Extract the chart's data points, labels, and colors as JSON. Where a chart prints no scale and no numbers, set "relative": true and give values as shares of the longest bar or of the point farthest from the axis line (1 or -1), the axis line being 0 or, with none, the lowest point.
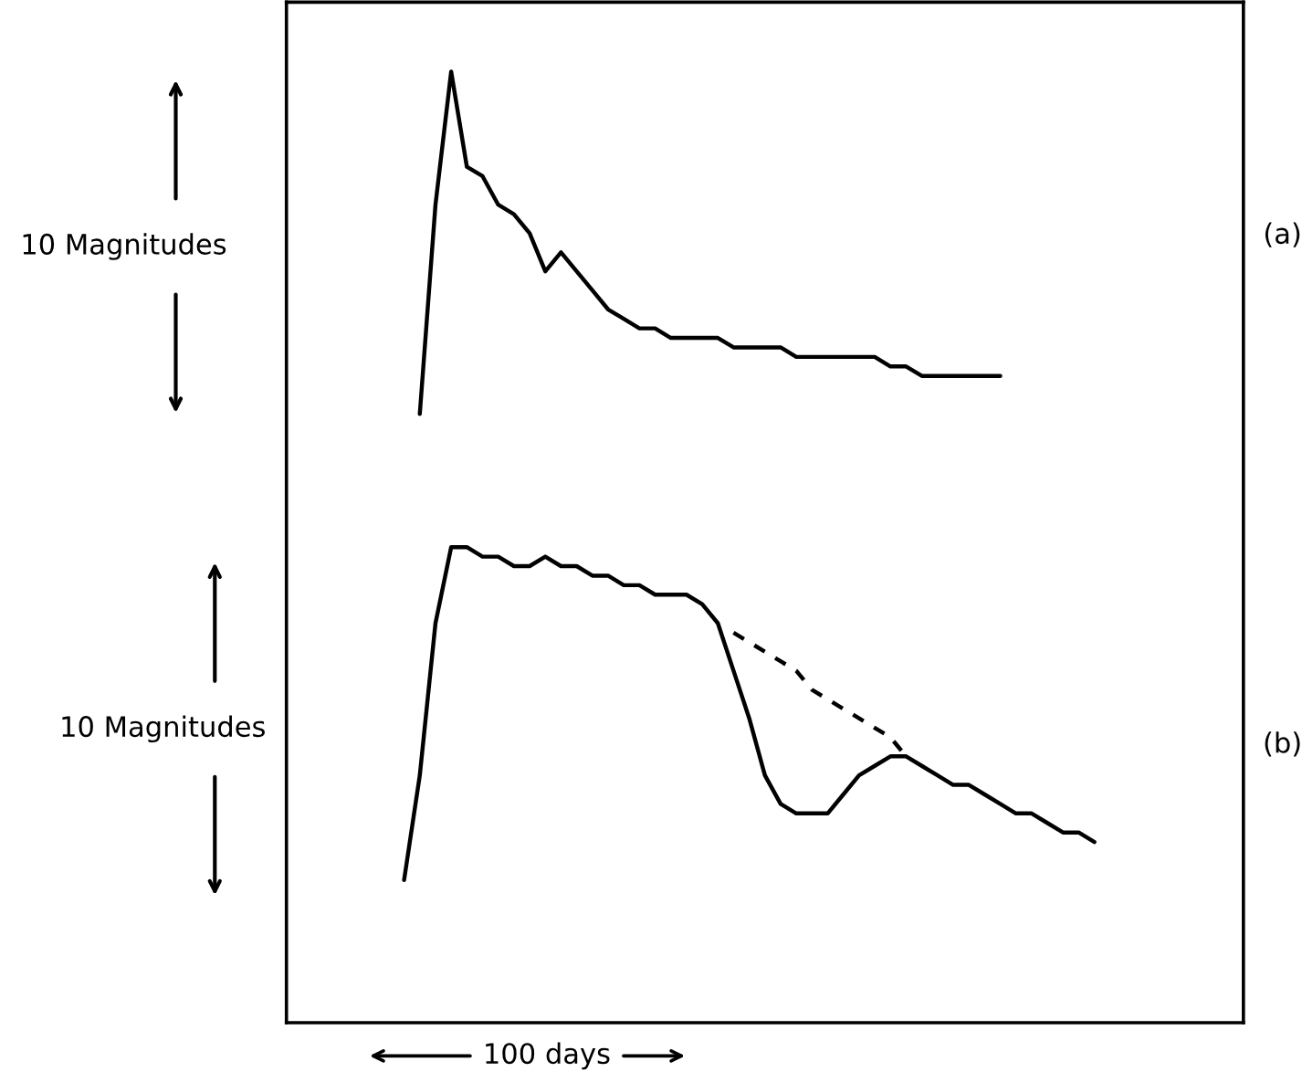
{
  "chart_data": {
    "type": "line",
    "relative": true,
    "legend": false,
    "marker": "none",
    "categories": [
      null,
      null,
      null,
      null,
      null,
      null,
      null,
      null,
      null,
      null,
      null,
      null,
      null,
      null,
      null,
      null,
      null,
      null,
      null,
      null,
      null,
      null,
      null,
      null,
      null,
      null,
      null,
      null,
      null,
      null,
      null,
      null,
      null,
      null,
      null,
      null,
      null,
      null,
      null,
      null,
      null,
      null,
      null,
      null,
      null,
      null,
      null,
      null,
      null,
      null,
      null,
      null,
      null,
      null,
      null,
      null,
      null,
      null,
      null
    ],
    "annotations": [
      "10 Magnitudes",
      "10 Magnitudes",
      "(a)",
      "(b)",
      "100 days"
    ],
    "series": [
      {
        "color": "#000000",
        "line_style": "solid",
        "values": [
          null,
          null,
          null,
          null,
          null,
          null,
          0.64,
          0.86,
          1,
          0.9,
          0.89,
          0.86,
          0.85,
          0.83,
          0.79,
          0.81,
          0.79,
          0.77,
          0.75,
          0.74,
          0.73,
          0.73,
          0.72,
          0.72,
          0.72,
          0.72,
          0.71,
          0.71,
          0.71,
          0.71,
          0.7,
          0.7,
          0.7,
          0.7,
          0.7,
          0.7,
          0.69,
          0.69,
          0.68,
          0.68,
          0.68,
          0.68,
          0.68,
          0.68,
          null,
          null,
          null,
          null,
          null,
          null,
          null,
          null,
          null,
          null,
          null,
          null,
          null,
          null,
          null
        ]
      },
      {
        "color": "#000000",
        "line_style": "solid",
        "values": [
          null,
          null,
          null,
          null,
          null,
          0.15,
          0.26,
          0.42,
          0.5,
          0.5,
          0.49,
          0.49,
          0.48,
          0.48,
          0.49,
          0.48,
          0.48,
          0.47,
          0.47,
          0.46,
          0.46,
          0.45,
          0.45,
          0.45,
          0.44,
          0.42,
          0.37,
          0.32,
          0.26,
          0.23,
          0.22,
          0.22,
          0.22,
          0.24,
          0.26,
          0.27,
          0.28,
          0.28,
          0.27,
          0.26,
          0.25,
          0.25,
          0.24,
          0.23,
          0.22,
          0.22,
          0.21,
          0.2,
          0.2,
          0.19,
          null,
          null,
          null,
          null,
          null,
          null,
          null,
          null,
          null
        ]
      },
      {
        "color": "#000000",
        "line_style": "dashed",
        "values": [
          null,
          null,
          null,
          null,
          null,
          null,
          null,
          null,
          null,
          null,
          null,
          null,
          null,
          null,
          null,
          null,
          null,
          null,
          null,
          null,
          null,
          null,
          null,
          null,
          null,
          null,
          0.41,
          0.4,
          0.39,
          0.38,
          0.37,
          0.35,
          0.34,
          0.33,
          0.32,
          0.31,
          0.3,
          0.28,
          null,
          null,
          null,
          null,
          null,
          null,
          null,
          null,
          null,
          null,
          null,
          null,
          null,
          null,
          null,
          null,
          null,
          null,
          null,
          null,
          null
        ]
      }
    ]
  }
}
